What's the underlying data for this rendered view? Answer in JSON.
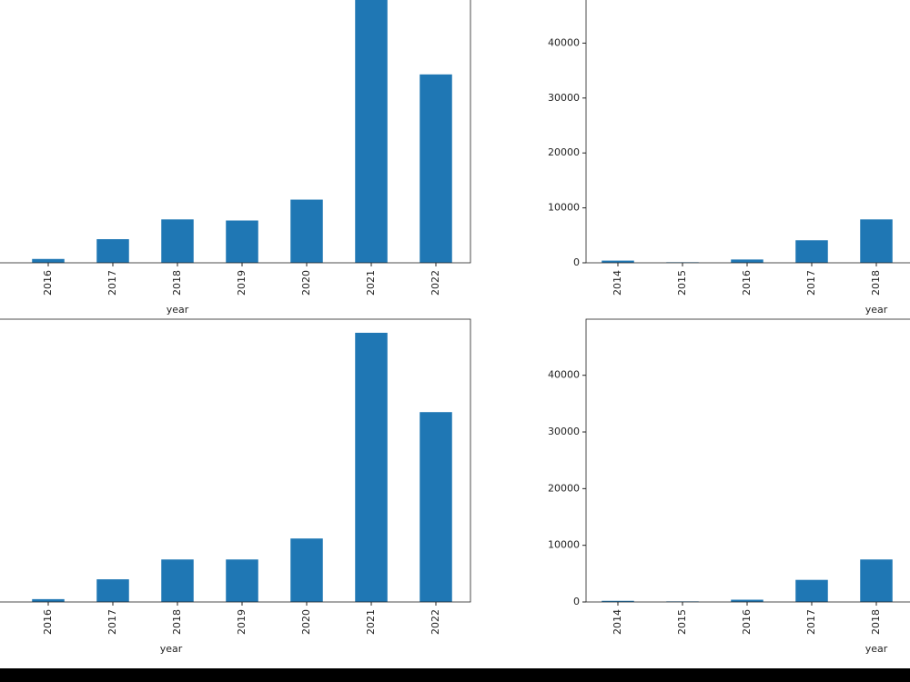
{
  "chart_data": [
    {
      "type": "bar",
      "color": "#1f77b4",
      "xlabel": "year",
      "categories": [
        "2016",
        "2017",
        "2018",
        "2019",
        "2020",
        "2021",
        "2022"
      ],
      "values": [
        700,
        4300,
        7900,
        7700,
        11500,
        48500,
        34300
      ],
      "ylim": [
        0,
        50000
      ]
    },
    {
      "type": "bar",
      "color": "#1f77b4",
      "xlabel": "year",
      "categories": [
        "2014",
        "2015",
        "2016",
        "2017",
        "2018"
      ],
      "values": [
        400,
        100,
        600,
        4100,
        7900
      ],
      "ylim": [
        0,
        50000
      ],
      "yticks": [
        0,
        10000,
        20000,
        30000,
        40000
      ]
    },
    {
      "type": "bar",
      "color": "#1f77b4",
      "xlabel": "year",
      "categories": [
        "2016",
        "2017",
        "2018",
        "2019",
        "2020",
        "2021",
        "2022"
      ],
      "values": [
        500,
        4000,
        7500,
        7500,
        11200,
        47500,
        33500
      ],
      "ylim": [
        0,
        49900
      ]
    },
    {
      "type": "bar",
      "color": "#1f77b4",
      "xlabel": "year",
      "categories": [
        "2014",
        "2015",
        "2016",
        "2017",
        "2018"
      ],
      "values": [
        200,
        100,
        400,
        3900,
        7500
      ],
      "ylim": [
        0,
        49900
      ],
      "yticks": [
        0,
        10000,
        20000,
        30000,
        40000
      ]
    }
  ]
}
